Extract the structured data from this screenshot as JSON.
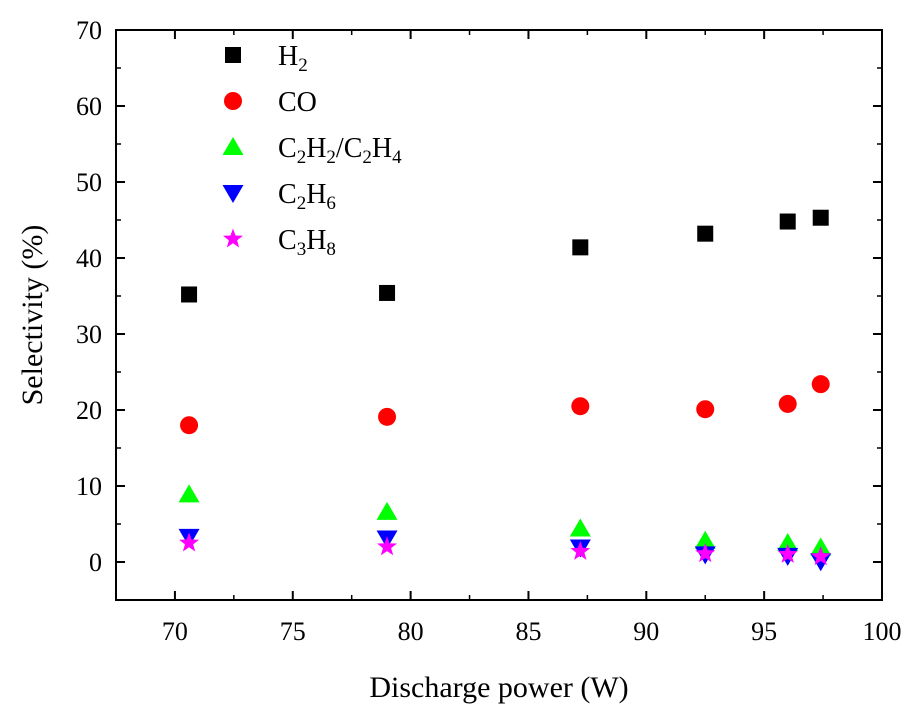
{
  "chart_data": {
    "type": "scatter",
    "title": "",
    "xlabel": "Discharge power (W)",
    "ylabel": "Selectivity (%)",
    "xlim": [
      67.5,
      100
    ],
    "ylim": [
      -5,
      70
    ],
    "xticks": [
      70,
      75,
      80,
      85,
      90,
      95,
      100
    ],
    "yticks": [
      0,
      10,
      20,
      30,
      40,
      50,
      60,
      70
    ],
    "grid": false,
    "legend_position": "top-left",
    "series": [
      {
        "name": "H2",
        "legend": [
          [
            "H",
            ""
          ],
          [
            "2",
            "sub"
          ]
        ],
        "marker": "square",
        "color": "#000000",
        "x": [
          70.6,
          79.0,
          87.2,
          92.5,
          96.0,
          97.4
        ],
        "y": [
          35.2,
          35.4,
          41.4,
          43.2,
          44.8,
          45.3
        ]
      },
      {
        "name": "CO",
        "legend": [
          [
            "CO",
            ""
          ]
        ],
        "marker": "circle",
        "color": "#ff0000",
        "x": [
          70.6,
          79.0,
          87.2,
          92.5,
          96.0,
          97.4
        ],
        "y": [
          18.0,
          19.1,
          20.5,
          20.1,
          20.8,
          23.4
        ]
      },
      {
        "name": "C2H2/C2H4",
        "legend": [
          [
            "C",
            ""
          ],
          [
            "2",
            "sub"
          ],
          [
            "H",
            ""
          ],
          [
            "2",
            "sub"
          ],
          [
            "/C",
            ""
          ],
          [
            "2",
            "sub"
          ],
          [
            "H",
            ""
          ],
          [
            "4",
            "sub"
          ]
        ],
        "marker": "triangle-up",
        "color": "#00ff00",
        "x": [
          70.6,
          79.0,
          87.2,
          92.5,
          96.0,
          97.4
        ],
        "y": [
          8.9,
          6.6,
          4.4,
          2.8,
          2.5,
          1.9
        ]
      },
      {
        "name": "C2H6",
        "legend": [
          [
            "C",
            ""
          ],
          [
            "2",
            "sub"
          ],
          [
            "H",
            ""
          ],
          [
            "6",
            "sub"
          ]
        ],
        "marker": "triangle-down",
        "color": "#0000ff",
        "x": [
          70.6,
          79.0,
          87.2,
          92.5,
          96.0,
          97.4
        ],
        "y": [
          3.3,
          3.1,
          1.9,
          1.0,
          0.8,
          0.1
        ]
      },
      {
        "name": "C3H8",
        "legend": [
          [
            "C",
            ""
          ],
          [
            "3",
            "sub"
          ],
          [
            "H",
            ""
          ],
          [
            "8",
            "sub"
          ]
        ],
        "marker": "star",
        "color": "#ff00ff",
        "x": [
          70.6,
          79.0,
          87.2,
          92.5,
          96.0,
          97.4
        ],
        "y": [
          2.5,
          2.0,
          1.4,
          1.1,
          1.0,
          0.7
        ]
      }
    ]
  }
}
